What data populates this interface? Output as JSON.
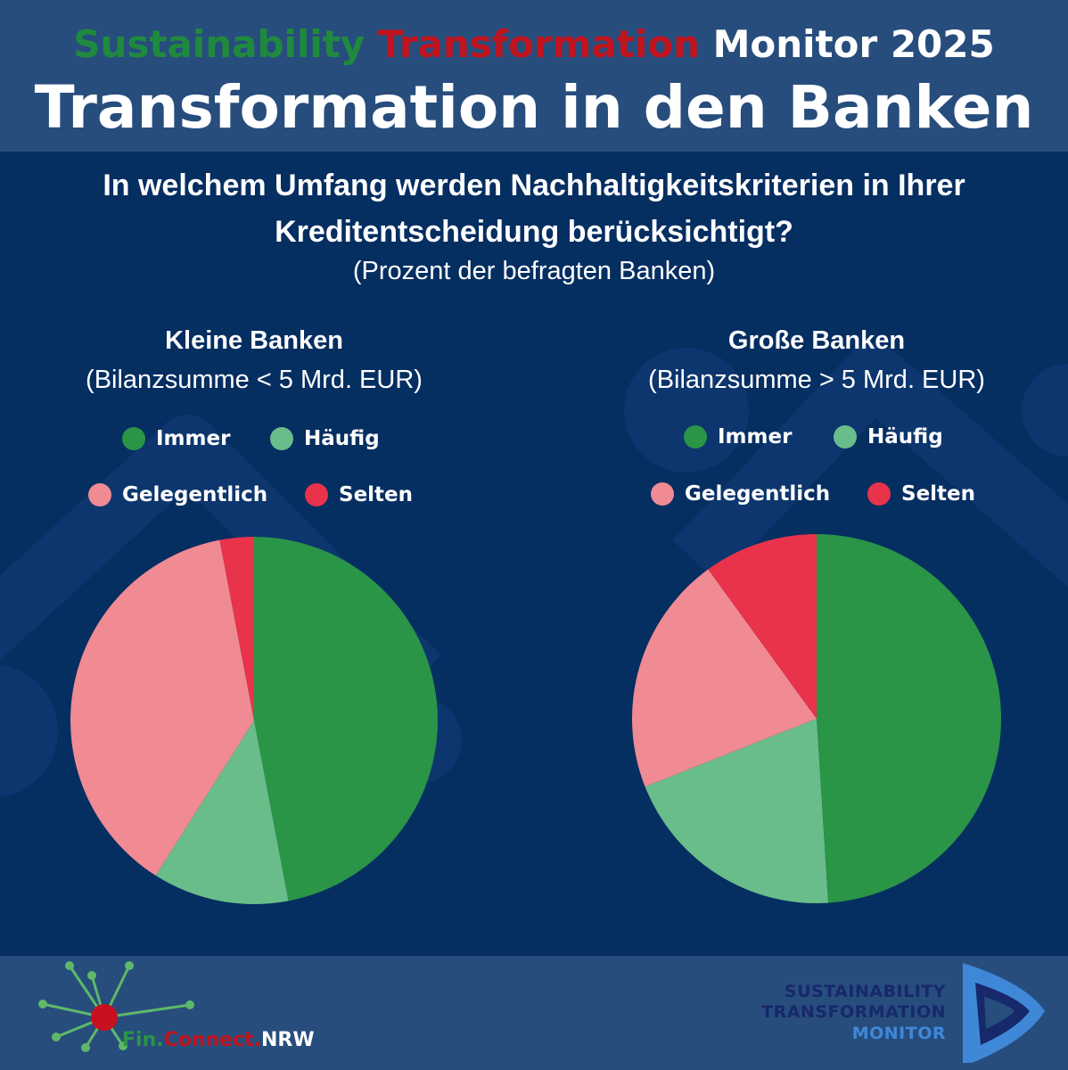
{
  "header": {
    "line1_part1": "Sustainability",
    "line1_part2": "Transformation",
    "line1_part3": "Monitor 2025",
    "line2": "Transformation in den Banken",
    "colors": {
      "part1": "#1f8a3e",
      "part2": "#c0141f",
      "part3": "#ffffff"
    }
  },
  "question": "In welchem Umfang werden Nachhaltigkeitskriterien in Ihrer Kreditentscheidung berücksichtigt?",
  "subtitle": "(Prozent der befragten Banken)",
  "chart_data": [
    {
      "type": "pie",
      "title": "Kleine Banken",
      "subtitle": "(Bilanzsumme < 5 Mrd. EUR)",
      "categories": [
        "Immer",
        "Häufig",
        "Gelegentlich",
        "Selten"
      ],
      "values": [
        47,
        12,
        38,
        3
      ],
      "colors": [
        "#2a9447",
        "#68bd8a",
        "#f08a93",
        "#e8334a"
      ],
      "legend_placement": "top"
    },
    {
      "type": "pie",
      "title": "Große Banken",
      "subtitle": "(Bilanzsumme > 5 Mrd. EUR)",
      "categories": [
        "Immer",
        "Häufig",
        "Gelegentlich",
        "Selten"
      ],
      "values": [
        49,
        20,
        21,
        10
      ],
      "colors": [
        "#2a9447",
        "#68bd8a",
        "#f08a93",
        "#e8334a"
      ],
      "legend_placement": "top"
    }
  ],
  "footer": {
    "fc_part1": "Fin.",
    "fc_part2": "Connect.",
    "fc_part3": "NRW",
    "fc_colors": {
      "part1": "#2a9447",
      "part2": "#c0141f",
      "part3": "#ffffff",
      "network": "#5fb86a",
      "node": "#c8101e"
    },
    "stm_line1": "SUSTAINABILITY",
    "stm_line2": "TRANSFORMATION",
    "stm_line3": "MONITOR",
    "stm_colors": {
      "dark": "#17286b",
      "light": "#3f88d8"
    }
  }
}
